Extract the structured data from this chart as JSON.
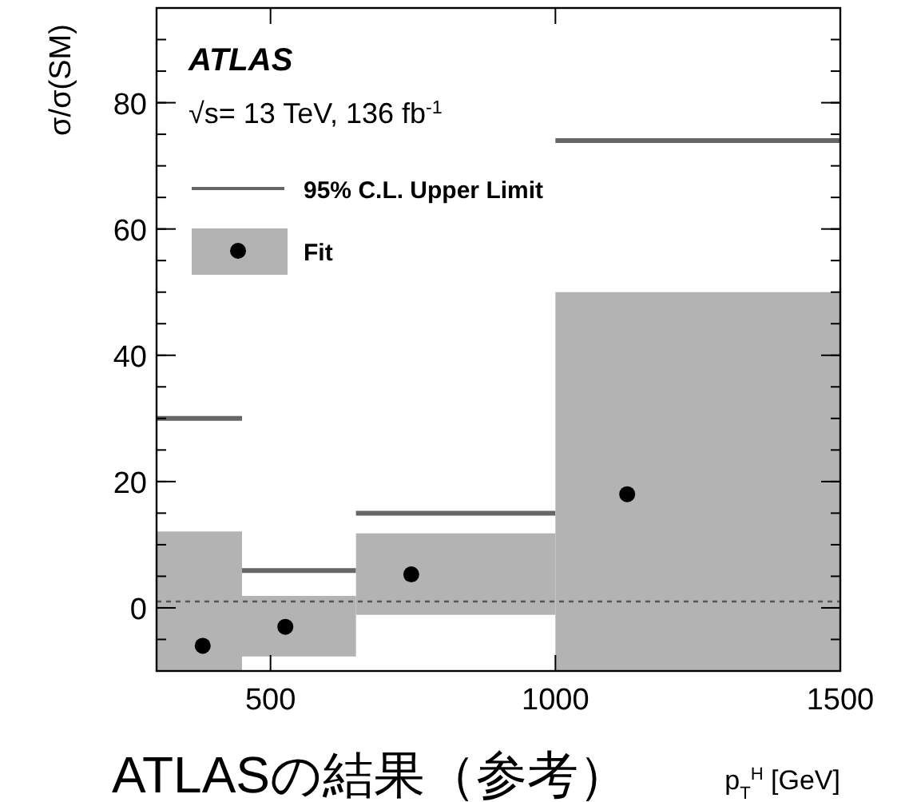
{
  "chart_data": {
    "type": "step",
    "ylabel": "σ/σ(SM)",
    "xlabel": "p$_{T}$$^{H}$ [GeV]",
    "annotations": [
      "ATLAS",
      "√s= 13 TeV, 136 fb$^{-1}$",
      "ATLASの結果（参考）"
    ],
    "xlim": [
      300,
      1500
    ],
    "xticks": [
      500,
      1000,
      1500
    ],
    "ylim": [
      -10,
      95
    ],
    "yticks": [
      0,
      20,
      40,
      60,
      80
    ],
    "legend": "top left",
    "grid": false,
    "ref_lines": [
      {
        "axis": "y",
        "value": 1,
        "label": null,
        "color": "#555555",
        "line_style": "dotted"
      }
    ],
    "series": [
      {
        "name": "95% C.L. Upper Limit",
        "color": "#666666",
        "x": [
          300,
          450,
          650,
          1000,
          1500
        ],
        "values": [
          30,
          5.9,
          15,
          74,
          74
        ]
      },
      {
        "type": "histogram",
        "color": "#b3b3b3",
        "bins": [
          300,
          450,
          650,
          1000,
          1500
        ],
        "base": [
          -10,
          -7.7,
          -1.1,
          -10
        ],
        "values": [
          22.1,
          9.6,
          12.9,
          60
        ]
      },
      {
        "type": "scatter",
        "name": "Fit",
        "color": "#000000",
        "marker": "circle",
        "x": [
          381,
          526,
          747,
          1126
        ],
        "values": [
          -6,
          -3,
          5.3,
          18
        ]
      }
    ]
  }
}
